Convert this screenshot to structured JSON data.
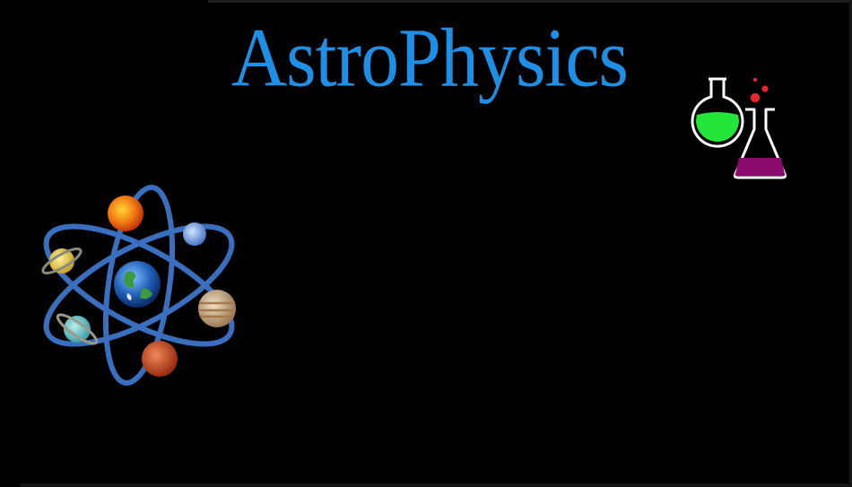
{
  "title": {
    "text": "AstroPhysics",
    "color": "#1e8fe6"
  },
  "background_color": "#000000",
  "graphics": {
    "atom_icon": "atom-with-planets-icon",
    "flasks_icon": "chemistry-flasks-icon",
    "orbit_color": "#3a6fbf",
    "green_liquid_color": "#22e63a",
    "purple_liquid_color": "#8a0a6e",
    "bubble_color": "#e8242f"
  }
}
